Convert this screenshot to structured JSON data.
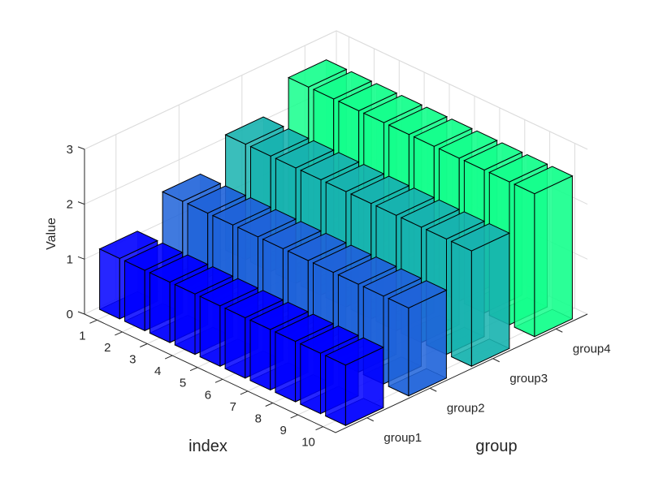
{
  "chart_data": {
    "type": "bar3",
    "title": "",
    "xlabel": "index",
    "ylabel": "group",
    "zlabel": "Value",
    "x_ticks": [
      "1",
      "2",
      "3",
      "4",
      "5",
      "6",
      "7",
      "8",
      "9",
      "10"
    ],
    "y_ticks": [
      "group1",
      "group2",
      "group3",
      "group4"
    ],
    "z_ticks": [
      "0",
      "1",
      "2",
      "3"
    ],
    "zlim": [
      0,
      3
    ],
    "grid": true,
    "categories": [
      1,
      2,
      3,
      4,
      5,
      6,
      7,
      8,
      9,
      10
    ],
    "series": [
      {
        "name": "group1",
        "color": "#0000ff",
        "values": [
          1.1,
          1.1,
          1.1,
          1.1,
          1.1,
          1.1,
          1.1,
          1.1,
          1.1,
          1.1
        ]
      },
      {
        "name": "group2",
        "color": "#1f63d9",
        "values": [
          1.6,
          1.6,
          1.6,
          1.6,
          1.6,
          1.6,
          1.6,
          1.6,
          1.6,
          1.6
        ]
      },
      {
        "name": "group3",
        "color": "#17b3af",
        "values": [
          2.1,
          2.1,
          2.1,
          2.1,
          2.1,
          2.1,
          2.1,
          2.1,
          2.1,
          2.1
        ]
      },
      {
        "name": "group4",
        "color": "#14ff8c",
        "values": [
          2.6,
          2.6,
          2.6,
          2.6,
          2.6,
          2.6,
          2.6,
          2.6,
          2.6,
          2.6
        ]
      }
    ]
  },
  "colors": {
    "axis": "#262626",
    "grid": "#dcdcdc",
    "edge": "#000000",
    "background": "#ffffff"
  }
}
